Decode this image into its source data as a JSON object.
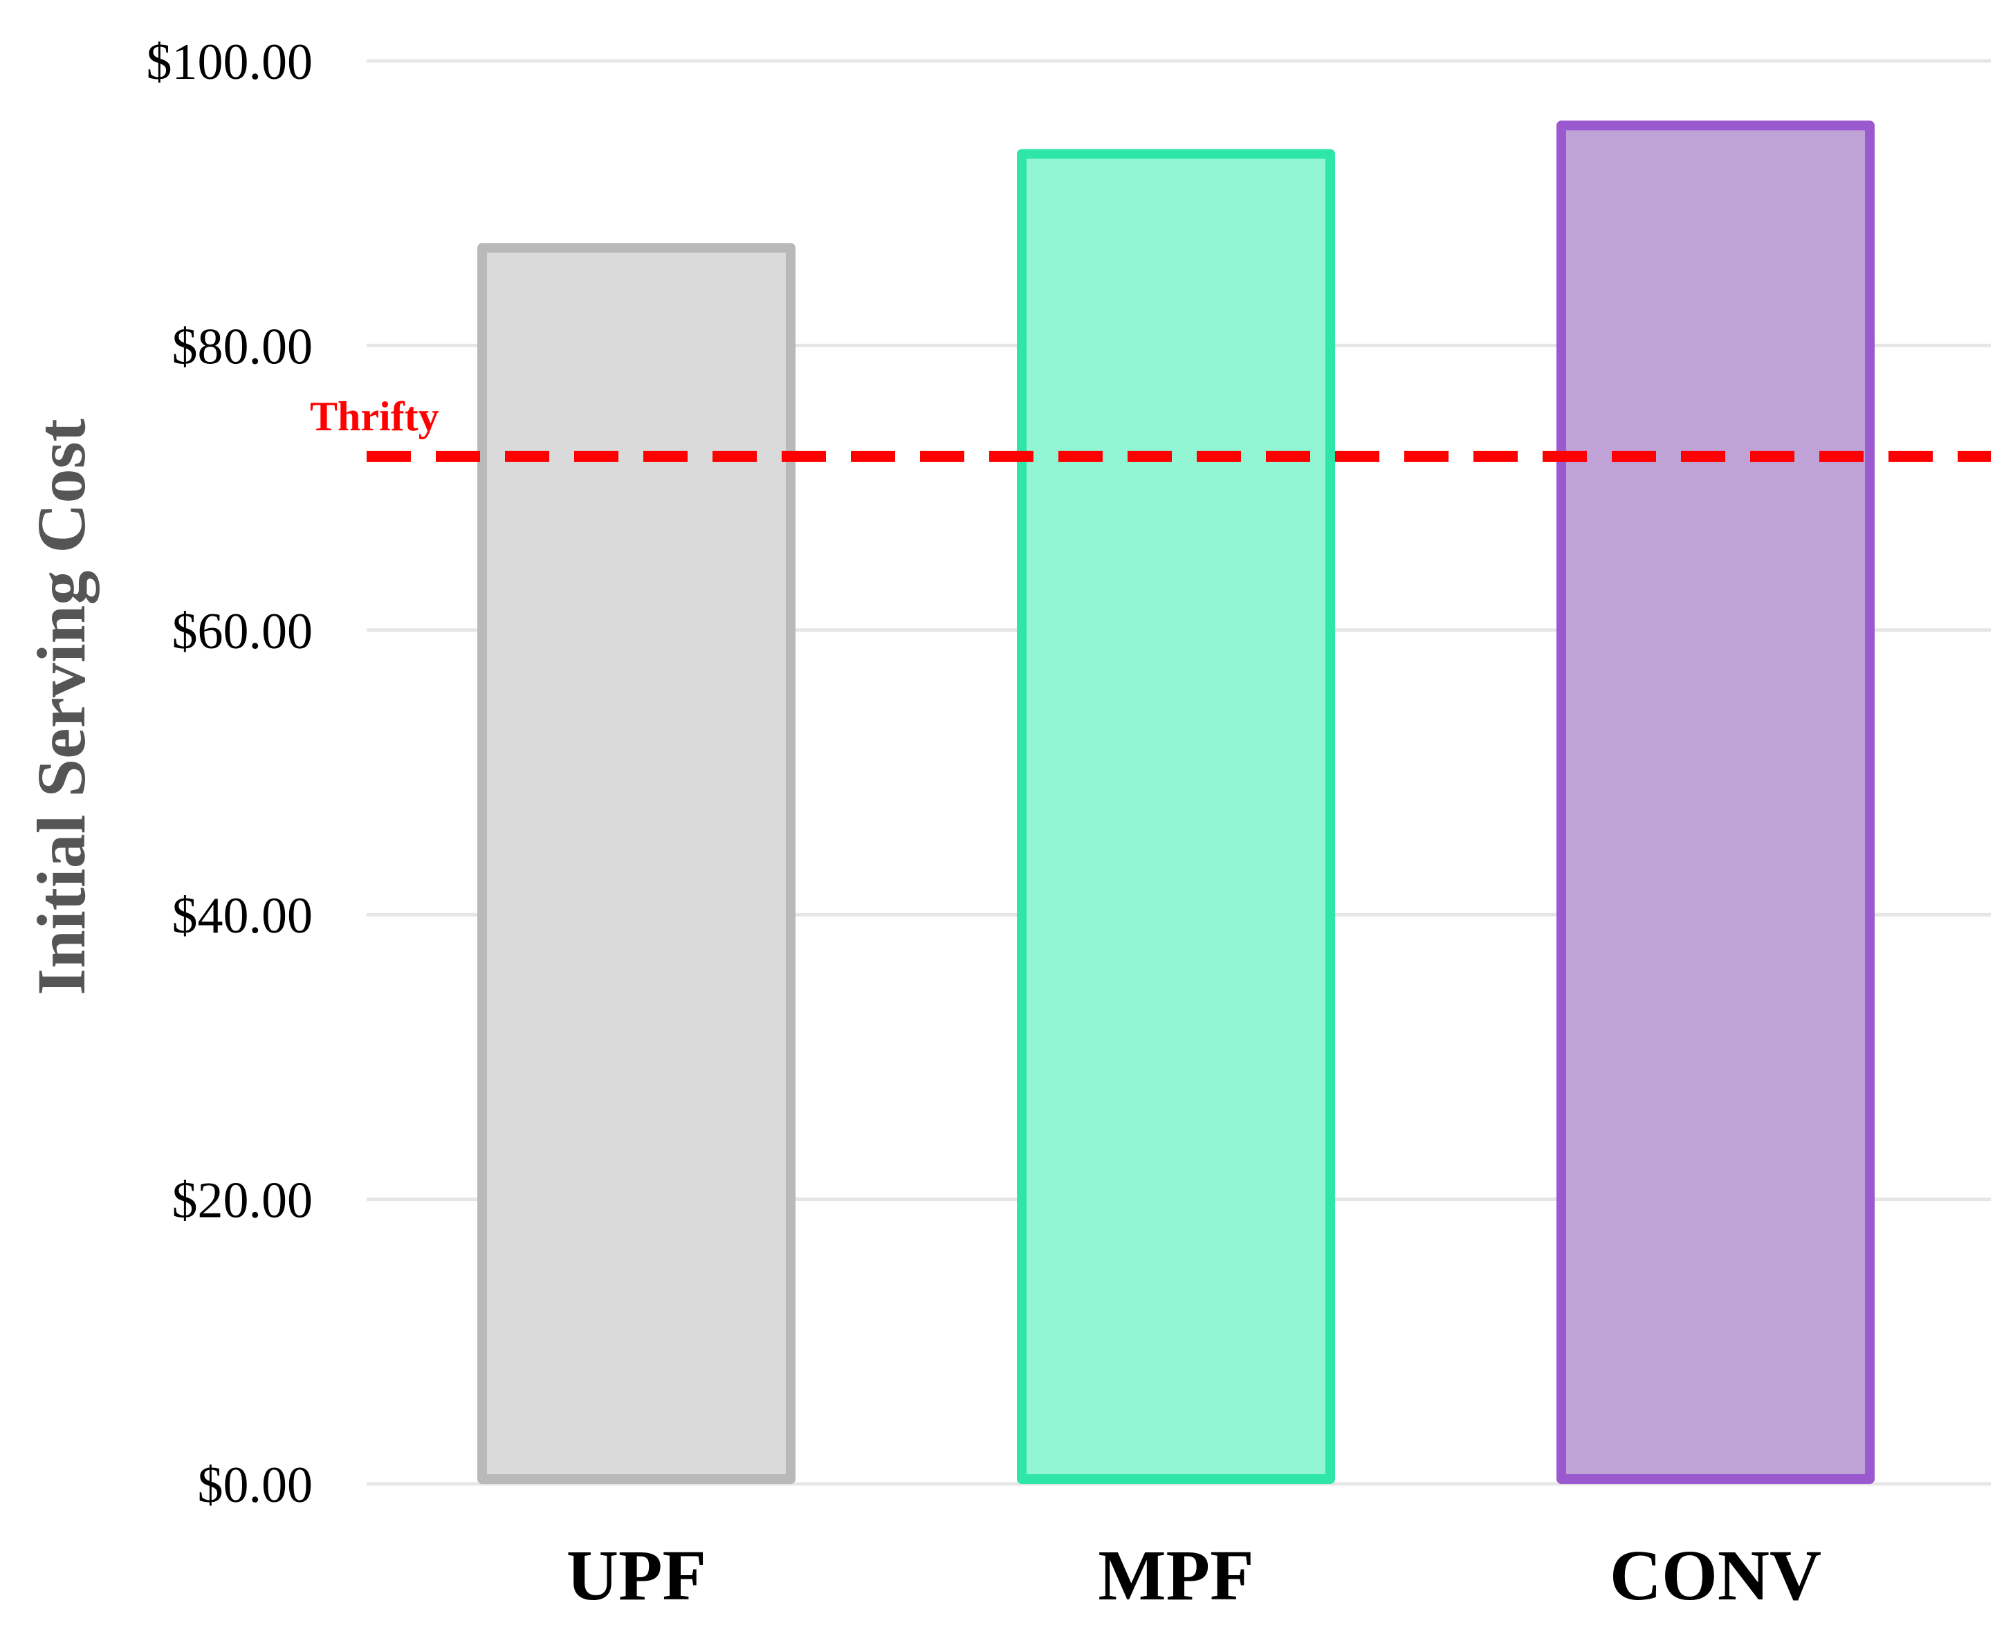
{
  "chart_data": {
    "type": "bar",
    "categories": [
      "UPF",
      "MPF",
      "CONV"
    ],
    "values": [
      87.2,
      93.8,
      95.8
    ],
    "title": "",
    "xlabel": "",
    "ylabel": "Initial Serving Cost",
    "ylim": [
      0,
      100
    ],
    "yticks": [
      0,
      20,
      40,
      60,
      80,
      100
    ],
    "ytick_labels": [
      "$0.00",
      "$20.00",
      "$40.00",
      "$60.00",
      "$80.00",
      "$100.00"
    ],
    "grid": "horizontal",
    "legend": "none",
    "bar_styles": [
      {
        "fill": "#dadada",
        "stroke": "#b9b9b9"
      },
      {
        "fill": "#92f5d3",
        "stroke": "#2ee6a8"
      },
      {
        "fill": "#bfa2d6",
        "stroke": "#9b59cf"
      }
    ],
    "reference_line": {
      "value": 72.2,
      "label": "Thrifty",
      "color": "#ff0000",
      "style": "dashed"
    },
    "colors": {
      "grid": "#e6e6e6",
      "axis_label": "#555555"
    }
  }
}
